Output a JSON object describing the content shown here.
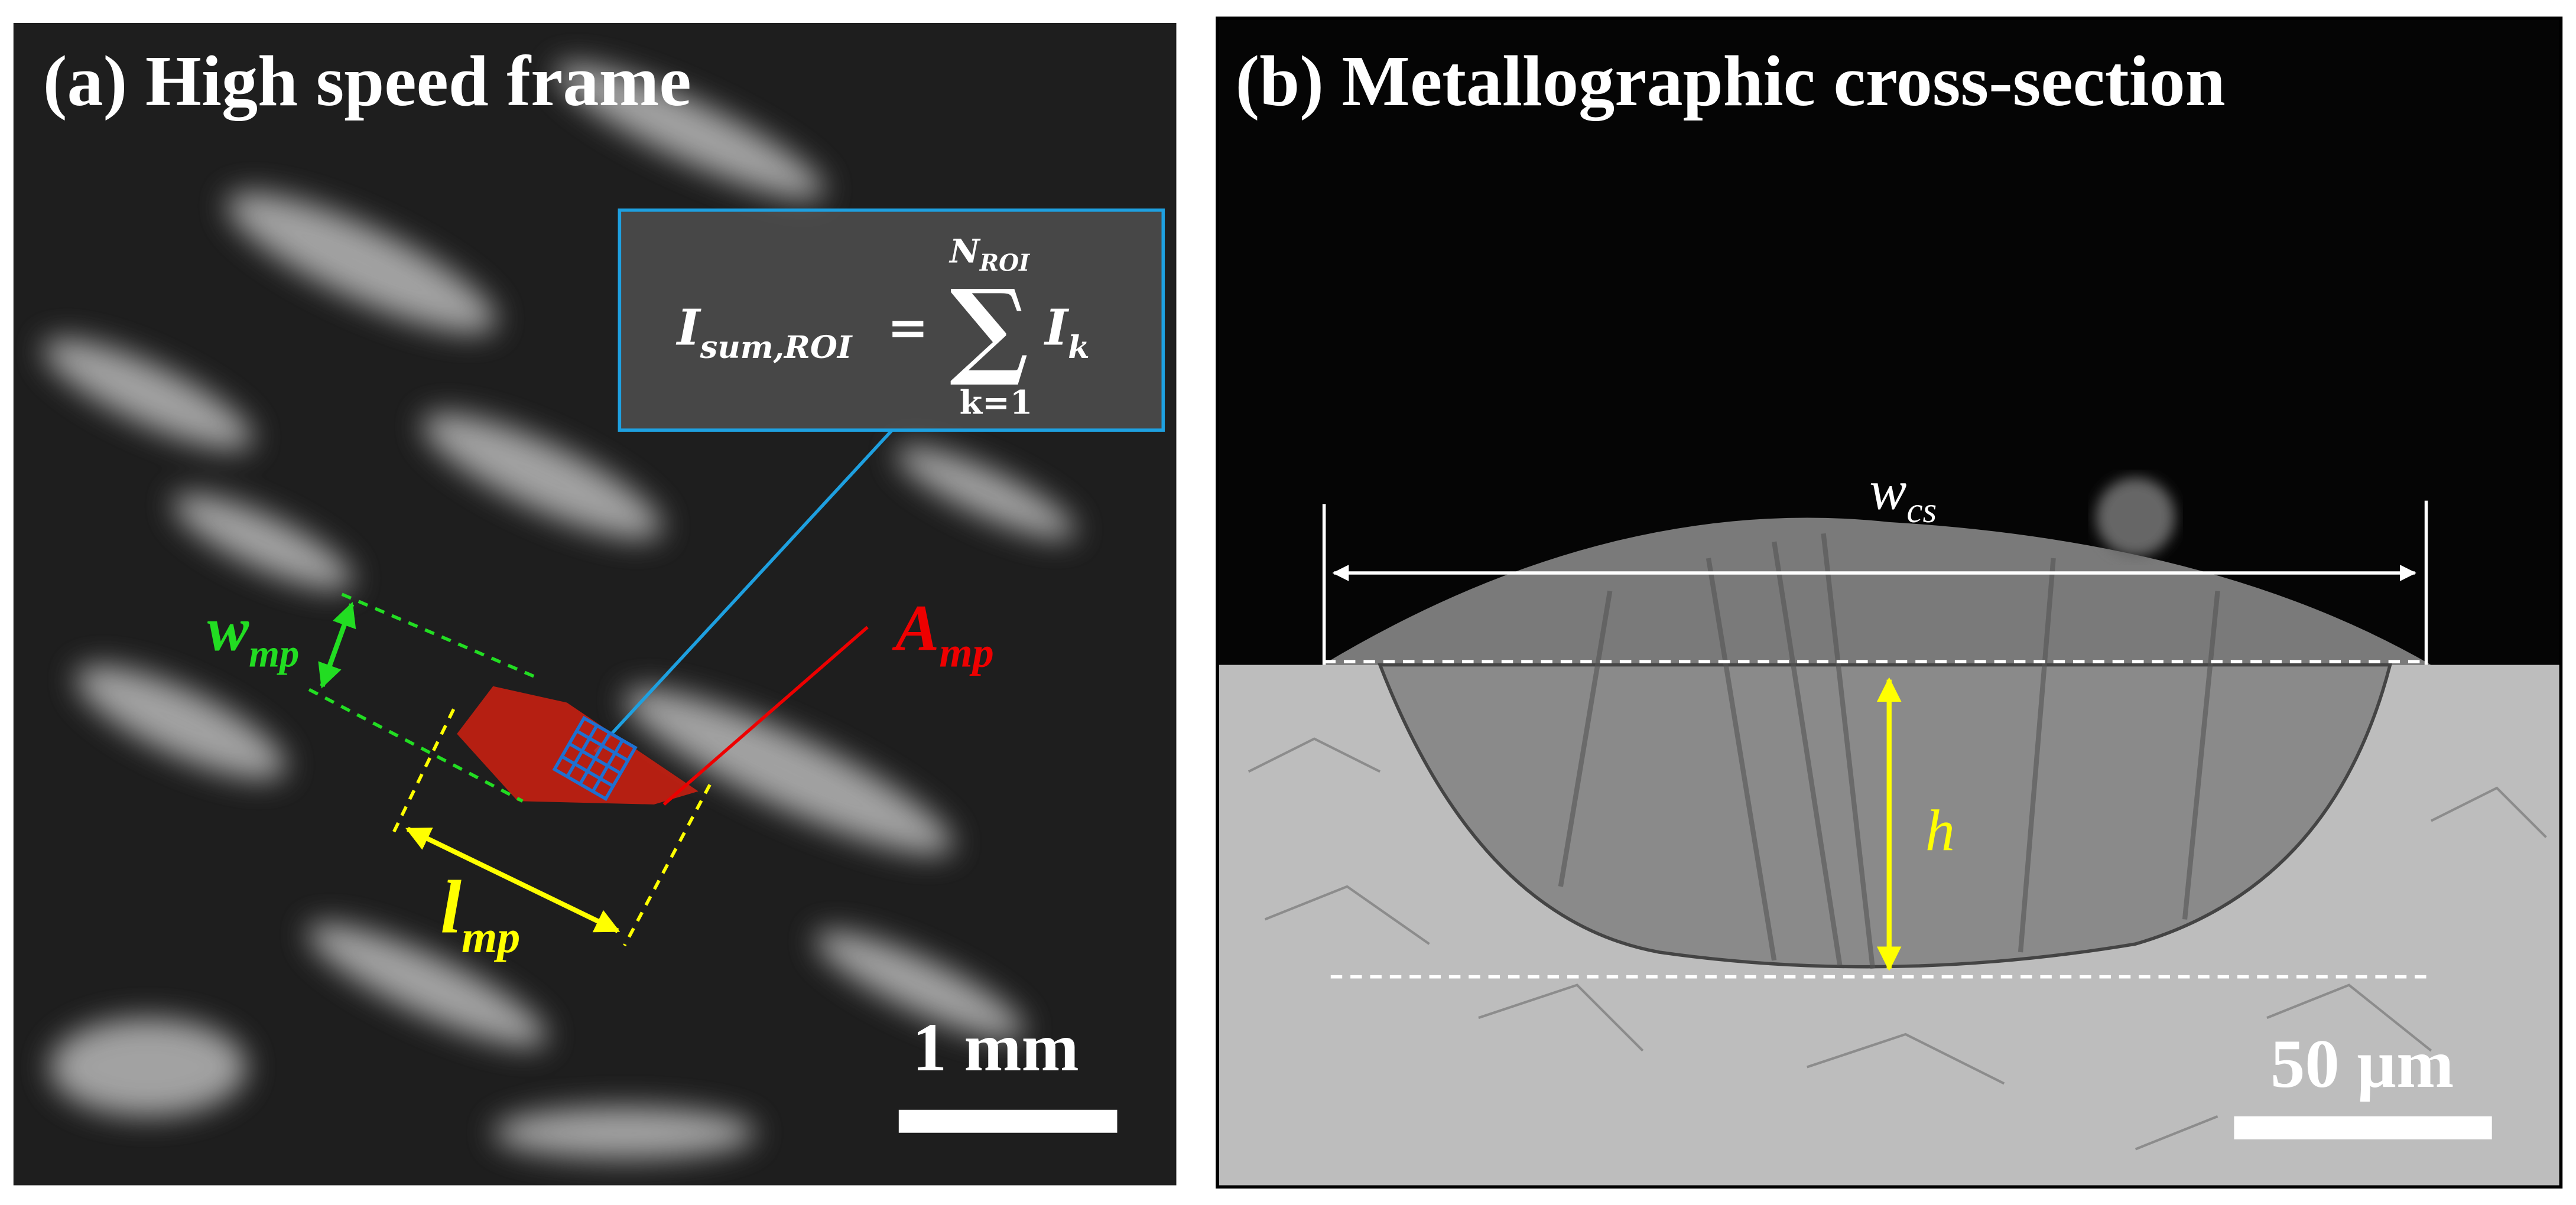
{
  "panels": [
    {
      "title": "(a) High speed frame",
      "equation": {
        "lhs": "I",
        "lhs_sub": "sum,ROI",
        "equals": "=",
        "sum": "∑",
        "upper": "N",
        "upper_sub": "ROI",
        "lower": "k=1",
        "term": "I",
        "term_sub": "k"
      },
      "labels": {
        "width": {
          "main": "w",
          "sub": "mp"
        },
        "area": {
          "main": "A",
          "sub": "mp"
        },
        "length": {
          "main": "l",
          "sub": "mp"
        }
      },
      "scale_bar": "1 mm"
    },
    {
      "title": "(b) Metallographic cross-section",
      "labels": {
        "width": {
          "main": "w",
          "sub": "cs"
        },
        "height": "h"
      },
      "scale_bar": "50 µm"
    }
  ]
}
